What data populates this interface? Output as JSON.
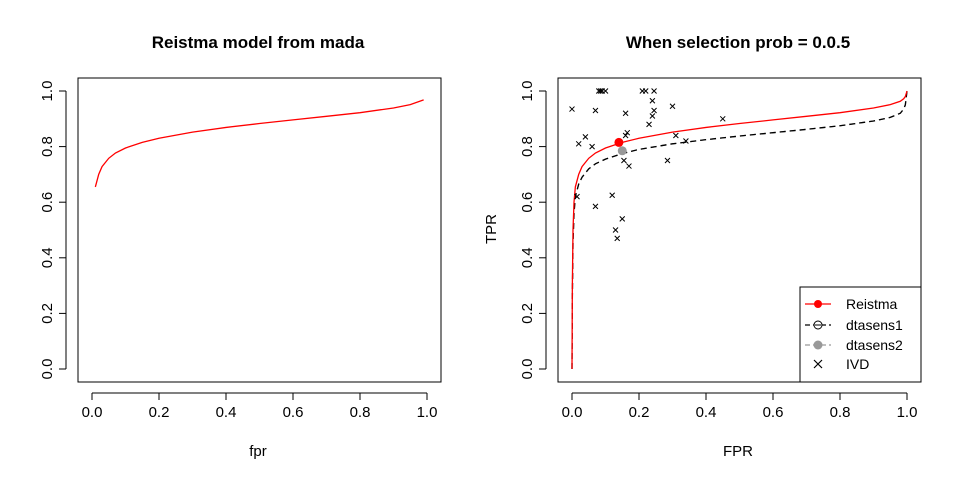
{
  "chart_data": [
    {
      "type": "line",
      "title": "Reistma model from mada",
      "xlabel": "fpr",
      "ylabel": "",
      "xlim": [
        0,
        1
      ],
      "ylim": [
        0,
        1
      ],
      "xticks": [
        "0.0",
        "0.2",
        "0.4",
        "0.6",
        "0.8",
        "1.0"
      ],
      "yticks": [
        "0.0",
        "0.2",
        "0.4",
        "0.6",
        "0.8",
        "1.0"
      ],
      "grid": false,
      "series": [
        {
          "color": "#ff0000",
          "x": [
            0.01,
            0.02,
            0.03,
            0.05,
            0.07,
            0.1,
            0.15,
            0.2,
            0.3,
            0.4,
            0.5,
            0.6,
            0.7,
            0.8,
            0.9,
            0.95,
            0.99
          ],
          "y": [
            0.655,
            0.7,
            0.728,
            0.758,
            0.777,
            0.795,
            0.815,
            0.83,
            0.852,
            0.869,
            0.883,
            0.896,
            0.909,
            0.922,
            0.939,
            0.951,
            0.968
          ]
        }
      ]
    },
    {
      "type": "line",
      "title": "When selection prob = 0.0.5",
      "xlabel": "FPR",
      "ylabel": "TPR",
      "xlim": [
        0,
        1
      ],
      "ylim": [
        0,
        1
      ],
      "xticks": [
        "0.0",
        "0.2",
        "0.4",
        "0.6",
        "0.8",
        "1.0"
      ],
      "yticks": [
        "0.0",
        "0.2",
        "0.4",
        "0.6",
        "0.8",
        "1.0"
      ],
      "grid": false,
      "legend_position": "bottom-right",
      "series": [
        {
          "name": "Reistma",
          "color": "#ff0000",
          "style": "solid",
          "x": [
            0,
            0.001,
            0.003,
            0.006,
            0.01,
            0.02,
            0.03,
            0.05,
            0.07,
            0.1,
            0.15,
            0.2,
            0.3,
            0.4,
            0.5,
            0.6,
            0.7,
            0.8,
            0.9,
            0.95,
            0.98,
            0.99,
            0.995,
            1
          ],
          "y": [
            0,
            0.3,
            0.5,
            0.6,
            0.655,
            0.7,
            0.728,
            0.758,
            0.777,
            0.795,
            0.815,
            0.83,
            0.852,
            0.869,
            0.883,
            0.896,
            0.909,
            0.922,
            0.939,
            0.951,
            0.963,
            0.972,
            0.98,
            1
          ]
        },
        {
          "name": "dtasens1",
          "color": "#000000",
          "style": "dashed",
          "x": [
            0,
            0.001,
            0.003,
            0.006,
            0.01,
            0.02,
            0.03,
            0.05,
            0.07,
            0.1,
            0.15,
            0.2,
            0.3,
            0.4,
            0.5,
            0.6,
            0.7,
            0.8,
            0.9,
            0.95,
            0.98,
            0.99,
            0.995,
            1
          ],
          "y": [
            0,
            0.25,
            0.45,
            0.56,
            0.62,
            0.665,
            0.69,
            0.72,
            0.738,
            0.755,
            0.775,
            0.79,
            0.81,
            0.825,
            0.838,
            0.85,
            0.862,
            0.875,
            0.892,
            0.905,
            0.92,
            0.935,
            0.95,
            1
          ]
        },
        {
          "name": "dtasens2",
          "color": "#999999",
          "style": "dashed",
          "x": [
            0,
            0.001,
            0.003,
            0.006,
            0.01,
            0.02,
            0.03,
            0.05,
            0.07,
            0.1,
            0.15,
            0.2,
            0.3,
            0.4,
            0.5,
            0.6,
            0.7,
            0.8,
            0.9,
            0.95,
            0.98,
            0.99,
            0.995,
            1
          ],
          "y": [
            0,
            0.25,
            0.45,
            0.56,
            0.62,
            0.665,
            0.69,
            0.72,
            0.738,
            0.755,
            0.775,
            0.79,
            0.81,
            0.825,
            0.838,
            0.85,
            0.862,
            0.875,
            0.892,
            0.905,
            0.92,
            0.935,
            0.95,
            1
          ]
        }
      ],
      "summary_points": [
        {
          "name": "Reistma",
          "color": "#ff0000",
          "x": 0.14,
          "y": 0.815
        },
        {
          "name": "dtasens2",
          "color": "#999999",
          "x": 0.15,
          "y": 0.785
        }
      ],
      "scatter": {
        "name": "IVD",
        "marker": "x",
        "color": "#000000",
        "points": [
          [
            0.0,
            0.935
          ],
          [
            0.02,
            0.81
          ],
          [
            0.04,
            0.835
          ],
          [
            0.06,
            0.8
          ],
          [
            0.07,
            0.93
          ],
          [
            0.08,
            1.0
          ],
          [
            0.085,
            1.0
          ],
          [
            0.09,
            1.0
          ],
          [
            0.1,
            1.0
          ],
          [
            0.12,
            0.625
          ],
          [
            0.13,
            0.5
          ],
          [
            0.135,
            0.47
          ],
          [
            0.15,
            0.54
          ],
          [
            0.155,
            0.75
          ],
          [
            0.16,
            0.84
          ],
          [
            0.16,
            0.92
          ],
          [
            0.165,
            0.85
          ],
          [
            0.17,
            0.73
          ],
          [
            0.21,
            1.0
          ],
          [
            0.22,
            1.0
          ],
          [
            0.23,
            0.88
          ],
          [
            0.24,
            0.91
          ],
          [
            0.245,
            1.0
          ],
          [
            0.24,
            0.965
          ],
          [
            0.245,
            0.93
          ],
          [
            0.285,
            0.75
          ],
          [
            0.3,
            0.945
          ],
          [
            0.31,
            0.84
          ],
          [
            0.34,
            0.82
          ],
          [
            0.45,
            0.9
          ],
          [
            0.015,
            0.62
          ],
          [
            0.07,
            0.585
          ]
        ]
      },
      "legend": [
        {
          "label": "Reistma",
          "kind": "line-dot",
          "color": "#ff0000"
        },
        {
          "label": "dtasens1",
          "kind": "dashed-open",
          "color": "#000000"
        },
        {
          "label": "dtasens2",
          "kind": "dashed-filled",
          "color": "#999999"
        },
        {
          "label": "IVD",
          "kind": "x",
          "color": "#000000"
        }
      ]
    }
  ]
}
